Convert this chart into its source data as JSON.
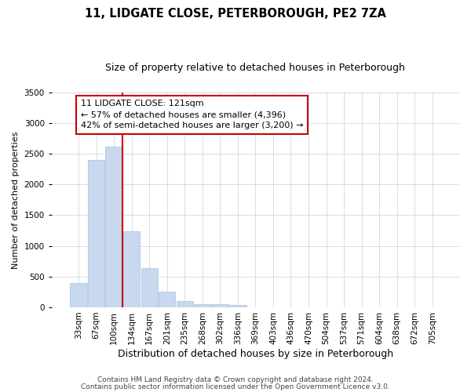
{
  "title": "11, LIDGATE CLOSE, PETERBOROUGH, PE2 7ZA",
  "subtitle": "Size of property relative to detached houses in Peterborough",
  "xlabel": "Distribution of detached houses by size in Peterborough",
  "ylabel": "Number of detached properties",
  "categories": [
    "33sqm",
    "67sqm",
    "100sqm",
    "134sqm",
    "167sqm",
    "201sqm",
    "235sqm",
    "268sqm",
    "302sqm",
    "336sqm",
    "369sqm",
    "403sqm",
    "436sqm",
    "470sqm",
    "504sqm",
    "537sqm",
    "571sqm",
    "604sqm",
    "638sqm",
    "672sqm",
    "705sqm"
  ],
  "values": [
    390,
    2400,
    2610,
    1240,
    640,
    260,
    100,
    55,
    45,
    35,
    0,
    0,
    0,
    0,
    0,
    0,
    0,
    0,
    0,
    0,
    0
  ],
  "bar_color": "#c8d8ee",
  "bar_edge_color": "#a8c0de",
  "vline_color": "#cc0000",
  "vline_pos": 2.5,
  "annotation_text": "11 LIDGATE CLOSE: 121sqm\n← 57% of detached houses are smaller (4,396)\n42% of semi-detached houses are larger (3,200) →",
  "annotation_box_color": "#ffffff",
  "annotation_box_edge": "#cc0000",
  "ylim": [
    0,
    3500
  ],
  "yticks": [
    0,
    500,
    1000,
    1500,
    2000,
    2500,
    3000,
    3500
  ],
  "footer1": "Contains HM Land Registry data © Crown copyright and database right 2024.",
  "footer2": "Contains public sector information licensed under the Open Government Licence v3.0.",
  "bg_color": "#ffffff",
  "grid_color": "#cdd8e8",
  "title_fontsize": 10.5,
  "subtitle_fontsize": 9,
  "xlabel_fontsize": 9,
  "ylabel_fontsize": 8,
  "tick_fontsize": 7.5,
  "footer_fontsize": 6.5,
  "annotation_fontsize": 8
}
